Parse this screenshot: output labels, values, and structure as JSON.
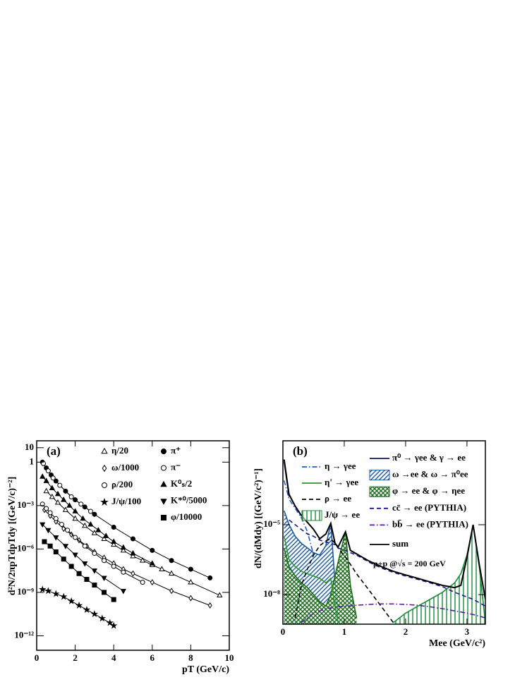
{
  "chart_data": [
    {
      "type": "scatter",
      "label": "(a)",
      "x_label": "pT (GeV/c)",
      "y_label": "d²N/2πpTdpTdy [(GeV/c)⁻²]",
      "xlim": [
        0,
        10
      ],
      "xticks": [
        0,
        2,
        4,
        6,
        8,
        10
      ],
      "ylim": [
        1e-13,
        30
      ],
      "log_y": true,
      "yticks": [
        {
          "value": 10,
          "label": "10"
        },
        1,
        {
          "value": 0.001,
          "label": "10⁻³"
        },
        {
          "value": 1e-06,
          "label": "10⁻⁶"
        },
        {
          "value": 1e-09,
          "label": "10⁻⁹"
        },
        {
          "value": 1e-12,
          "label": "10⁻¹²"
        }
      ],
      "series": [
        {
          "name": "η/20",
          "color": "#000000",
          "marker": "triangle",
          "filled": false,
          "x": [
            0.5,
            0.8,
            1.1,
            1.5,
            2,
            2.5,
            3,
            3.5,
            4,
            4.5,
            5,
            5.5,
            6,
            6.5,
            7,
            8,
            9.5
          ],
          "values": [
            0.01,
            0.004,
            0.0016,
            0.0005,
            0.000126,
            4e-05,
            1.26e-05,
            5e-06,
            2e-06,
            7.9e-07,
            3.2e-07,
            1.6e-07,
            7.9e-08,
            4e-08,
            2e-08,
            5e-09,
            6.3e-10
          ]
        },
        {
          "name": "ω/1000",
          "color": "#000000",
          "marker": "diamond",
          "filled": false,
          "x": [
            0.4,
            0.7,
            1,
            1.4,
            1.8,
            2.2,
            2.6,
            3,
            3.5,
            4,
            4.5,
            5,
            6,
            7,
            8,
            9
          ],
          "values": [
            0.0005,
            0.0002,
            7.9e-05,
            2.5e-05,
            1e-05,
            4e-06,
            1.6e-06,
            6.3e-07,
            2.5e-07,
            1e-07,
            4e-08,
            2e-08,
            5e-09,
            1.26e-09,
            4e-10,
            1.26e-10
          ]
        },
        {
          "name": "ρ/200",
          "color": "#000000",
          "marker": "circle",
          "filled": false,
          "x": [
            0.3,
            0.5,
            0.7,
            1,
            1.3,
            1.6,
            2,
            2.5,
            3,
            3.5,
            4,
            4.5,
            5.5
          ],
          "values": [
            0.00126,
            0.00063,
            0.00032,
            0.000126,
            5e-05,
            2e-05,
            6.3e-06,
            1.6e-06,
            5e-07,
            1.6e-07,
            6.3e-08,
            2.5e-08,
            5e-09
          ]
        },
        {
          "name": "J/ψ/100",
          "color": "#000000",
          "marker": "star",
          "filled": true,
          "x": [
            0.3,
            0.6,
            1,
            1.4,
            1.8,
            2.2,
            2.6,
            3,
            3.4,
            3.8,
            4
          ],
          "values": [
            1.6e-09,
            1.26e-09,
            7.9e-10,
            5e-10,
            2.5e-10,
            1.26e-10,
            6.3e-11,
            3.2e-11,
            1.6e-11,
            7.9e-12,
            5e-12
          ]
        },
        {
          "name": "π⁺",
          "color": "#000000",
          "marker": "circle",
          "filled": true,
          "x": [
            0.3,
            0.5,
            0.75,
            1,
            1.5,
            2,
            2.5,
            3,
            4,
            5,
            6,
            7,
            8,
            9
          ],
          "values": [
            1,
            0.4,
            0.13,
            0.05,
            0.01,
            0.0025,
            0.0008,
            0.00025,
            3.2e-05,
            5e-06,
            8e-07,
            1.6e-07,
            4e-08,
            1e-08
          ]
        },
        {
          "name": "π⁻",
          "color": "#000000",
          "marker": "circle",
          "filled": false,
          "x": [
            0.35,
            0.6,
            0.85,
            1.2,
            1.8,
            2.3,
            2.8
          ],
          "values": [
            0.8,
            0.25,
            0.08,
            0.025,
            0.004,
            0.00126,
            0.0004
          ]
        },
        {
          "name": "K⁰ₛ/2",
          "color": "#000000",
          "marker": "triangle",
          "filled": true,
          "x": [
            0.3,
            0.5,
            0.8,
            1.1,
            1.4,
            1.7,
            2,
            2.4,
            2.8,
            3.2,
            3.6,
            4,
            4.5,
            5,
            6
          ],
          "values": [
            0.1,
            0.05,
            0.016,
            0.0063,
            0.0025,
            0.001,
            0.0004,
            0.000126,
            5e-05,
            2e-05,
            7.9e-06,
            3.2e-06,
            1.26e-06,
            5e-07,
            1e-07
          ]
        },
        {
          "name": "K*⁰/5000",
          "color": "#000000",
          "marker": "triangle-down",
          "filled": true,
          "x": [
            0.3,
            0.6,
            1,
            1.5,
            2,
            2.5,
            3,
            3.5,
            4.5
          ],
          "values": [
            5e-05,
            2e-05,
            6.3e-06,
            1.6e-06,
            4e-07,
            1e-07,
            3.2e-08,
            1e-08,
            1.26e-09
          ]
        },
        {
          "name": "φ/10000",
          "color": "#000000",
          "marker": "square",
          "filled": true,
          "x": [
            0.4,
            0.7,
            1,
            1.4,
            1.8,
            2.2,
            2.6,
            3,
            3.5,
            4
          ],
          "values": [
            3.2e-06,
            1.6e-06,
            6.3e-07,
            2e-07,
            6.3e-08,
            2e-08,
            7.9e-09,
            3.2e-09,
            1e-09,
            3.2e-10
          ]
        }
      ]
    },
    {
      "type": "line",
      "label": "(b)",
      "x_label": "Mee (GeV/c²)",
      "y_label": "dN/(dMdy) [(GeV/c²)⁻¹]",
      "annotation": "p+p @√s = 200 GeV",
      "xlim": [
        0,
        3.3
      ],
      "xticks": [
        0,
        1,
        2,
        3
      ],
      "ylim": [
        5.4e-10,
        0.04
      ],
      "log_y": true,
      "yticks": [
        {
          "value": 1e-05,
          "label": "10⁻⁵"
        },
        {
          "value": 1e-08,
          "label": "10⁻⁸"
        }
      ],
      "x": [
        0.02,
        0.1,
        0.2,
        0.3,
        0.4,
        0.5,
        0.6,
        0.7,
        0.78,
        0.85,
        0.9,
        1.02,
        1.1,
        1.2,
        1.4,
        1.6,
        1.8,
        2.0,
        2.2,
        2.4,
        2.6,
        2.8,
        2.9,
        3.0,
        3.1,
        3.2,
        3.3
      ],
      "series": [
        {
          "name": "η → γee",
          "color": "#1f5fbf",
          "dash": "dashdot",
          "values": [
            0.00079,
            0.000126,
            5e-05,
            2e-05,
            5e-06,
            5e-07,
            null,
            null,
            null,
            null,
            null,
            null,
            null,
            null,
            null,
            null,
            null,
            null,
            null,
            null,
            null,
            null,
            null,
            null,
            null,
            null,
            null
          ]
        },
        {
          "name": "η' → γee",
          "color": "#2a9a2a",
          "dash": "solid",
          "values": [
            3.2e-06,
            3.2e-07,
            1.6e-07,
            1e-07,
            7.9e-08,
            6.3e-08,
            5e-08,
            3.2e-08,
            5e-08,
            3.2e-09,
            6.3e-10,
            null,
            null,
            null,
            null,
            null,
            null,
            null,
            null,
            null,
            null,
            null,
            null,
            null,
            null,
            null,
            null
          ]
        },
        {
          "name": "ρ → ee",
          "color": "#000000",
          "dash": "dashed",
          "values": [
            null,
            null,
            1e-09,
            2.5e-08,
            1.26e-07,
            5e-07,
            1.26e-06,
            2e-06,
            2.5e-06,
            1.6e-06,
            1e-06,
            4e-07,
            2e-07,
            7.9e-08,
            1.6e-08,
            3.2e-09,
            6.3e-10,
            null,
            null,
            null,
            null,
            null,
            null,
            null,
            null,
            null,
            null
          ]
        },
        {
          "name": "J/ψ → ee",
          "color": "#1a8a3a",
          "dash": "solid",
          "fill": "vertical",
          "values": [
            null,
            null,
            null,
            null,
            null,
            null,
            null,
            null,
            null,
            null,
            null,
            null,
            null,
            null,
            null,
            null,
            6.3e-10,
            1.6e-09,
            3.2e-09,
            6.3e-09,
            1.26e-08,
            3.2e-08,
            7.9e-08,
            5e-07,
            1e-05,
            1.6e-07,
            6.3e-10
          ]
        },
        {
          "name": "π⁰ → γee & γ → ee",
          "color": "#0a1a6a",
          "dash": "solid",
          "values": [
            0.005,
            0.00016,
            null,
            null,
            null,
            null,
            null,
            null,
            null,
            null,
            null,
            null,
            null,
            null,
            null,
            null,
            null,
            null,
            null,
            null,
            null,
            null,
            null,
            null,
            null,
            null,
            null
          ]
        },
        {
          "name": "ω →ee & ω → π⁰ee",
          "color": "#1a5aa0",
          "dash": "solid",
          "fill": "diagonal",
          "values": [
            4e-05,
            1e-05,
            3.2e-06,
            1.6e-06,
            1e-06,
            6.3e-07,
            5e-07,
            1.26e-06,
            1.15e-05,
            3.2e-08,
            1e-09,
            null,
            null,
            null,
            null,
            null,
            null,
            null,
            null,
            null,
            null,
            null,
            null,
            null,
            null,
            null,
            null
          ]
        },
        {
          "name": "φ → ee & φ → ηee",
          "color": "#1a6a1a",
          "dash": "solid",
          "fill": "cross",
          "values": [
            1e-06,
            1.6e-07,
            6.3e-08,
            3.2e-08,
            2e-08,
            1e-08,
            5e-09,
            3.2e-09,
            1e-08,
            6.3e-08,
            2.5e-07,
            5e-06,
            2.5e-08,
            1e-09,
            null,
            null,
            null,
            null,
            null,
            null,
            null,
            null,
            null,
            null,
            null,
            null,
            null
          ]
        },
        {
          "name": "cc̄ → ee (PYTHIA)",
          "color": "#1a1a8a",
          "dash": "dashed",
          "values": [
            null,
            1.6e-05,
            1e-05,
            6.3e-06,
            4e-06,
            3.2e-06,
            2.2e-06,
            1.8e-06,
            1.6e-06,
            1.4e-06,
            1e-06,
            7.9e-07,
            6.3e-07,
            5e-07,
            2.5e-07,
            1.4e-07,
            9e-08,
            6.3e-08,
            4.5e-08,
            3.2e-08,
            2.2e-08,
            1.26e-08,
            1e-08,
            7.9e-09,
            6.3e-09,
            4.5e-09,
            3.2e-09
          ]
        },
        {
          "name": "bb̄ → ee (PYTHIA)",
          "color": "#5a1a9a",
          "dash": "dashdot",
          "values": [
            null,
            null,
            null,
            6.3e-10,
            1e-09,
            1.6e-09,
            2e-09,
            2.5e-09,
            2.7e-09,
            2.8e-09,
            3e-09,
            3.2e-09,
            3.3e-09,
            3.5e-09,
            3.8e-09,
            4e-09,
            4e-09,
            3.8e-09,
            3.5e-09,
            3e-09,
            2.5e-09,
            2e-09,
            1.8e-09,
            1.6e-09,
            1.4e-09,
            1.2e-09,
            1e-09
          ]
        },
        {
          "name": "sum",
          "color": "#000000",
          "dash": "solid",
          "values": [
            0.0063,
            0.0002,
            6.3e-05,
            2.5e-05,
            1.26e-05,
            6.3e-06,
            2.5e-06,
            4e-06,
            1.15e-05,
            1.6e-06,
            1.1e-06,
            5e-06,
            7.9e-07,
            5.6e-07,
            2.8e-07,
            1.6e-07,
            1e-07,
            7e-08,
            5e-08,
            3.5e-08,
            2.5e-08,
            2e-08,
            2.5e-08,
            4e-07,
            1e-05,
            2e-07,
            6.3e-09
          ]
        }
      ]
    }
  ]
}
